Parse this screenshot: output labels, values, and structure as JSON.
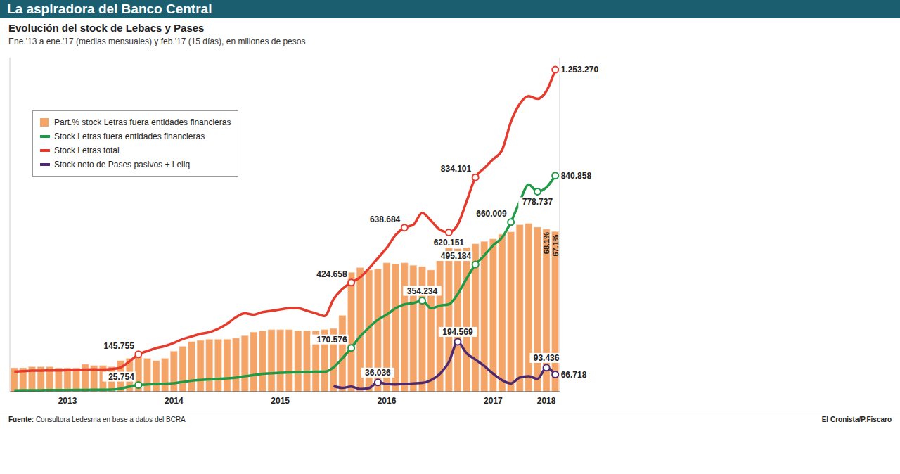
{
  "chart_data": {
    "type": "bar",
    "title": "La aspiradora del Banco Central",
    "subtitle": "Evolución del stock de Lebacs y Pases",
    "description": "Ene.'13 a ene.'17 (medias mensuales) y feb.'17 (15 días), en millones de pesos",
    "source": "Fuente: Consultora Ledesma en base a datos del BCRA",
    "credit": "El Cronista/P.Fiscaro",
    "legend": "top-left",
    "data_labels": true,
    "tick_labels": "x",
    "grid": false,
    "ylim": [
      0,
      1300000
    ],
    "y2lim": [
      0,
      140
    ],
    "categories": [
      null,
      null,
      null,
      null,
      null,
      null,
      "2013",
      null,
      null,
      null,
      null,
      null,
      null,
      null,
      null,
      null,
      null,
      null,
      "2014",
      null,
      null,
      null,
      null,
      null,
      null,
      null,
      null,
      null,
      null,
      null,
      "2015",
      null,
      null,
      null,
      null,
      null,
      null,
      null,
      null,
      null,
      null,
      null,
      "2016",
      null,
      null,
      null,
      null,
      null,
      null,
      null,
      null,
      null,
      null,
      null,
      "2017",
      null,
      null,
      null,
      null,
      null,
      "2018",
      null
    ],
    "series": [
      {
        "name": "Part.% stock Letras fuera entidades financieras",
        "type": "bar",
        "axis": "y2",
        "color": "#f5a468",
        "values": [
          10,
          10,
          10.5,
          10.5,
          10.5,
          10,
          10,
          10,
          11.5,
          11,
          11,
          10.5,
          13,
          14,
          14.5,
          14,
          13,
          14,
          17,
          19,
          21,
          21.5,
          22,
          22,
          22,
          22.5,
          23.5,
          25,
          25.5,
          26,
          26,
          26,
          25.5,
          25.5,
          25.5,
          26,
          26.5,
          32,
          50,
          52,
          51,
          51.5,
          54,
          53.5,
          54,
          53,
          52.5,
          51,
          55,
          61.5,
          60,
          60.5,
          62,
          63,
          64,
          66,
          67,
          70,
          70.5,
          69,
          68.1,
          67.1
        ],
        "value_labels": [
          null,
          null,
          null,
          null,
          null,
          null,
          null,
          null,
          null,
          null,
          null,
          null,
          null,
          null,
          null,
          null,
          null,
          null,
          null,
          null,
          null,
          null,
          null,
          null,
          null,
          null,
          null,
          null,
          null,
          null,
          null,
          null,
          null,
          null,
          null,
          null,
          null,
          null,
          null,
          null,
          null,
          null,
          null,
          null,
          null,
          null,
          null,
          null,
          null,
          null,
          null,
          null,
          null,
          null,
          null,
          null,
          null,
          null,
          null,
          null,
          "68.1%",
          "67.1%"
        ]
      },
      {
        "name": "Stock Letras fuera entidades financieras",
        "type": "line",
        "color": "#1f9a46",
        "marker": "circle",
        "values": [
          5000,
          5200,
          5500,
          5800,
          6000,
          6200,
          6500,
          6800,
          7000,
          7200,
          7500,
          8000,
          12000,
          20000,
          25754,
          28000,
          30000,
          31000,
          33000,
          38000,
          43000,
          46000,
          48000,
          50000,
          52000,
          55000,
          60000,
          65000,
          70000,
          72000,
          74000,
          75000,
          76000,
          77000,
          78000,
          78000,
          95000,
          130000,
          170576,
          215000,
          250000,
          280000,
          300000,
          325000,
          340000,
          345000,
          354234,
          325000,
          335000,
          340000,
          380000,
          440000,
          495184,
          530000,
          570000,
          600000,
          660009,
          740000,
          806000,
          778737,
          795000,
          840858
        ],
        "value_labels": [
          null,
          null,
          null,
          null,
          null,
          null,
          null,
          null,
          null,
          null,
          null,
          null,
          null,
          null,
          "25.754",
          null,
          null,
          null,
          null,
          null,
          null,
          null,
          null,
          null,
          null,
          null,
          null,
          null,
          null,
          null,
          null,
          null,
          null,
          null,
          null,
          null,
          null,
          null,
          "170.576",
          null,
          null,
          null,
          null,
          null,
          null,
          null,
          "354.234",
          null,
          null,
          null,
          null,
          null,
          "495.184",
          null,
          null,
          null,
          "660.009",
          null,
          null,
          "778.737",
          null,
          "840.858"
        ]
      },
      {
        "name": "Stock Letras total",
        "type": "line",
        "color": "#e63a2c",
        "marker": "circle",
        "values": [
          78000,
          80000,
          82000,
          82000,
          83000,
          83000,
          84000,
          85000,
          86000,
          87000,
          86000,
          88000,
          95000,
          118000,
          145755,
          158000,
          170000,
          178000,
          190000,
          205000,
          215000,
          225000,
          232000,
          245000,
          265000,
          290000,
          305000,
          300000,
          310000,
          315000,
          320000,
          325000,
          325000,
          315000,
          305000,
          295000,
          360000,
          400000,
          424658,
          445000,
          480000,
          520000,
          560000,
          610000,
          638684,
          650000,
          696000,
          665000,
          630000,
          620151,
          650000,
          740000,
          834101,
          870000,
          905000,
          940000,
          1050000,
          1120000,
          1150000,
          1140000,
          1170000,
          1253270
        ],
        "value_labels": [
          null,
          null,
          null,
          null,
          null,
          null,
          null,
          null,
          null,
          null,
          null,
          null,
          null,
          null,
          "145.755",
          null,
          null,
          null,
          null,
          null,
          null,
          null,
          null,
          null,
          null,
          null,
          null,
          null,
          null,
          null,
          null,
          null,
          null,
          null,
          null,
          null,
          null,
          null,
          "424.658",
          null,
          null,
          null,
          null,
          null,
          "638.684",
          null,
          null,
          null,
          null,
          "620.151",
          null,
          null,
          "834.101",
          null,
          null,
          null,
          null,
          null,
          null,
          null,
          null,
          "1.253.270"
        ]
      },
      {
        "name": "Stock neto de Pases pasivos + Leliq",
        "type": "line",
        "color": "#4b2a70",
        "marker": "circle",
        "values": [
          null,
          null,
          null,
          null,
          null,
          null,
          null,
          null,
          null,
          null,
          null,
          null,
          null,
          null,
          null,
          null,
          null,
          null,
          null,
          null,
          null,
          null,
          null,
          null,
          null,
          null,
          null,
          null,
          null,
          null,
          null,
          null,
          null,
          null,
          null,
          null,
          22000,
          15000,
          20000,
          10000,
          14000,
          36036,
          30000,
          28000,
          30000,
          32000,
          34000,
          45000,
          70000,
          115000,
          194569,
          150000,
          125000,
          100000,
          70000,
          45000,
          32000,
          55000,
          60000,
          50000,
          93436,
          66718
        ],
        "value_labels": [
          null,
          null,
          null,
          null,
          null,
          null,
          null,
          null,
          null,
          null,
          null,
          null,
          null,
          null,
          null,
          null,
          null,
          null,
          null,
          null,
          null,
          null,
          null,
          null,
          null,
          null,
          null,
          null,
          null,
          null,
          null,
          null,
          null,
          null,
          null,
          null,
          null,
          null,
          null,
          null,
          null,
          "36.036",
          null,
          null,
          null,
          null,
          null,
          null,
          null,
          null,
          "194.569",
          null,
          null,
          null,
          null,
          null,
          null,
          null,
          null,
          null,
          "93.436",
          "66.718"
        ]
      }
    ]
  }
}
